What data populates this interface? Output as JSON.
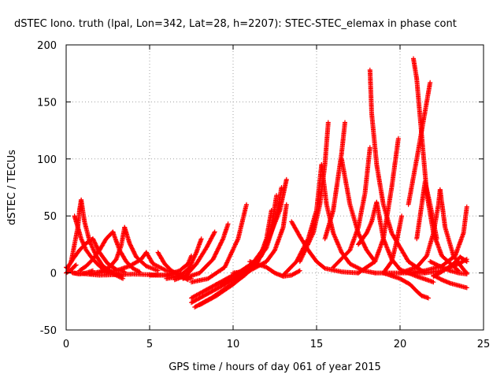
{
  "chart_data": {
    "type": "scatter",
    "title": "dSTEC Iono. truth (lpal, Lon=342, Lat=28, h=2207): STEC-STEC_elemax in phase cont",
    "xlabel": "GPS time / hours of day 061 of year 2015",
    "ylabel": "dSTEC  / TECUs",
    "xlim": [
      0,
      25
    ],
    "ylim": [
      -50,
      200
    ],
    "xticks": [
      0,
      5,
      10,
      15,
      20,
      25
    ],
    "yticks": [
      -50,
      0,
      50,
      100,
      150,
      200
    ],
    "grid": true,
    "marker": "+",
    "color": "#ff0000",
    "series": [
      {
        "x": [
          0.0,
          0.4,
          0.8,
          1.2,
          1.6
        ],
        "y": [
          5,
          0,
          -1,
          0,
          2
        ]
      },
      {
        "x": [
          0.0,
          0.2,
          0.4,
          0.5,
          0.6
        ],
        "y": [
          0,
          2,
          4,
          6,
          7
        ]
      },
      {
        "x": [
          0.5,
          0.7,
          0.9,
          1.2,
          1.6,
          2.0,
          2.4,
          3.0,
          3.4
        ],
        "y": [
          50,
          40,
          30,
          20,
          12,
          6,
          2,
          -2,
          -5
        ]
      },
      {
        "x": [
          0.3,
          0.5,
          0.7,
          0.8,
          0.9
        ],
        "y": [
          10,
          25,
          40,
          55,
          64
        ]
      },
      {
        "x": [
          0.9,
          1.1,
          1.4,
          1.8,
          2.2,
          2.8,
          3.4
        ],
        "y": [
          64,
          45,
          28,
          15,
          6,
          0,
          -3
        ]
      },
      {
        "x": [
          0.1,
          0.4,
          0.8,
          1.2,
          1.6
        ],
        "y": [
          5,
          12,
          20,
          26,
          30
        ]
      },
      {
        "x": [
          1.6,
          2.0,
          2.5,
          3.0,
          3.5
        ],
        "y": [
          30,
          18,
          8,
          3,
          1
        ]
      },
      {
        "x": [
          0.8,
          1.2,
          1.6,
          2.0,
          2.4,
          2.8
        ],
        "y": [
          2,
          6,
          12,
          20,
          30,
          36
        ]
      },
      {
        "x": [
          2.8,
          3.2,
          3.6,
          4.0,
          4.4
        ],
        "y": [
          36,
          20,
          10,
          4,
          1
        ]
      },
      {
        "x": [
          1.4,
          2.0,
          2.6,
          3.0,
          3.3,
          3.5
        ],
        "y": [
          -1,
          1,
          5,
          12,
          24,
          40
        ]
      },
      {
        "x": [
          3.5,
          3.8,
          4.2,
          4.8,
          5.5
        ],
        "y": [
          40,
          26,
          14,
          6,
          2
        ]
      },
      {
        "x": [
          2.0,
          3.0,
          3.8,
          4.5,
          4.8
        ],
        "y": [
          0,
          2,
          6,
          12,
          18
        ]
      },
      {
        "x": [
          4.8,
          5.2,
          6.0,
          7.0
        ],
        "y": [
          18,
          8,
          2,
          -1
        ]
      },
      {
        "x": [
          0.5,
          2.0,
          4.0,
          6.0,
          7.5
        ],
        "y": [
          0,
          -2,
          -1,
          -2,
          -5
        ]
      },
      {
        "x": [
          5.5,
          5.9,
          6.3,
          6.8,
          7.3
        ],
        "y": [
          18,
          8,
          2,
          -2,
          -6
        ]
      },
      {
        "x": [
          5.0,
          6.0,
          6.8,
          7.3,
          7.5
        ],
        "y": [
          -2,
          -2,
          2,
          8,
          15
        ]
      },
      {
        "x": [
          6.0,
          6.8,
          7.4,
          7.8,
          8.1
        ],
        "y": [
          -5,
          -3,
          5,
          18,
          30
        ]
      },
      {
        "x": [
          6.5,
          7.2,
          7.8,
          8.4,
          8.9
        ],
        "y": [
          -6,
          -2,
          8,
          22,
          36
        ]
      },
      {
        "x": [
          7.0,
          8.0,
          8.8,
          9.4,
          9.7
        ],
        "y": [
          -5,
          0,
          12,
          30,
          43
        ]
      },
      {
        "x": [
          7.5,
          8.5,
          9.5,
          10.3,
          10.8
        ],
        "y": [
          -8,
          -5,
          5,
          30,
          60
        ]
      },
      {
        "x": [
          7.5,
          8.5,
          9.5,
          10.5,
          11.5
        ],
        "y": [
          -22,
          -14,
          -6,
          2,
          12
        ]
      },
      {
        "x": [
          7.5,
          8.5,
          9.5,
          10.5,
          11.5,
          12.0,
          12.3
        ],
        "y": [
          -26,
          -18,
          -10,
          -2,
          10,
          30,
          55
        ]
      },
      {
        "x": [
          7.7,
          8.7,
          9.7,
          10.7,
          11.7,
          12.3,
          12.6
        ],
        "y": [
          -30,
          -22,
          -12,
          -2,
          15,
          40,
          68
        ]
      },
      {
        "x": [
          8.0,
          9.0,
          10.0,
          11.0,
          12.0,
          12.6,
          12.9
        ],
        "y": [
          -28,
          -20,
          -10,
          2,
          22,
          50,
          75
        ]
      },
      {
        "x": [
          9.0,
          10.0,
          11.0,
          12.0,
          12.8,
          13.2
        ],
        "y": [
          -10,
          -5,
          5,
          25,
          55,
          82
        ]
      },
      {
        "x": [
          10.0,
          11.0,
          12.0,
          12.5,
          13.0,
          13.2
        ],
        "y": [
          0,
          2,
          10,
          20,
          40,
          60
        ]
      },
      {
        "x": [
          11.0,
          12.0,
          12.5,
          13.0,
          13.5,
          14.0
        ],
        "y": [
          10,
          5,
          0,
          -3,
          -2,
          2
        ]
      },
      {
        "x": [
          13.5,
          14.0,
          14.5,
          15.0,
          15.5,
          16.5,
          17.5
        ],
        "y": [
          45,
          32,
          20,
          10,
          4,
          1,
          0
        ]
      },
      {
        "x": [
          13.0,
          13.8,
          14.5,
          15.0,
          15.3
        ],
        "y": [
          -2,
          10,
          30,
          55,
          95
        ]
      },
      {
        "x": [
          15.3,
          15.6,
          16.0,
          16.5,
          17.0,
          17.8,
          18.5
        ],
        "y": [
          95,
          60,
          35,
          18,
          8,
          2,
          0
        ]
      },
      {
        "x": [
          14.0,
          14.8,
          15.2,
          15.5,
          15.7
        ],
        "y": [
          10,
          35,
          60,
          95,
          132
        ]
      },
      {
        "x": [
          15.5,
          16.0,
          16.2,
          16.5,
          16.7
        ],
        "y": [
          30,
          55,
          75,
          105,
          132
        ]
      },
      {
        "x": [
          16.5,
          17.0,
          17.5,
          18.0,
          18.5
        ],
        "y": [
          100,
          60,
          35,
          20,
          10
        ]
      },
      {
        "x": [
          16.0,
          17.0,
          17.5,
          17.9,
          18.2
        ],
        "y": [
          5,
          20,
          40,
          70,
          110
        ]
      },
      {
        "x": [
          18.2,
          18.3,
          18.6,
          19.0,
          19.5,
          20.5,
          21.5
        ],
        "y": [
          178,
          140,
          95,
          60,
          35,
          10,
          0
        ]
      },
      {
        "x": [
          17.5,
          18.0,
          18.3,
          18.6
        ],
        "y": [
          25,
          35,
          45,
          62
        ]
      },
      {
        "x": [
          18.6,
          19.0,
          19.5,
          20.0,
          21.0,
          22.0
        ],
        "y": [
          62,
          30,
          12,
          3,
          -3,
          -8
        ]
      },
      {
        "x": [
          17.5,
          18.5,
          19.0,
          19.5,
          19.9
        ],
        "y": [
          0,
          10,
          30,
          75,
          118
        ]
      },
      {
        "x": [
          19.0,
          19.5,
          19.8,
          20.1
        ],
        "y": [
          0,
          10,
          28,
          50
        ]
      },
      {
        "x": [
          18.5,
          19.5,
          20.5,
          21.5,
          22.5,
          23.5,
          24.0
        ],
        "y": [
          0,
          0,
          0,
          0,
          2,
          8,
          12
        ]
      },
      {
        "x": [
          20.8,
          21.0,
          21.3,
          21.6,
          22.0,
          22.5,
          23.5
        ],
        "y": [
          188,
          170,
          120,
          70,
          35,
          15,
          2
        ]
      },
      {
        "x": [
          20.5,
          21.0,
          21.3,
          21.6,
          21.8
        ],
        "y": [
          60,
          100,
          125,
          150,
          167
        ]
      },
      {
        "x": [
          21.0,
          21.3,
          21.5,
          21.8,
          22.2
        ],
        "y": [
          30,
          60,
          80,
          60,
          30
        ]
      },
      {
        "x": [
          19.0,
          20.0,
          20.6,
          21.0,
          21.3,
          21.7
        ],
        "y": [
          0,
          -5,
          -10,
          -16,
          -20,
          -22
        ]
      },
      {
        "x": [
          20.0,
          21.0,
          21.6,
          22.0,
          22.3,
          22.4
        ],
        "y": [
          0,
          5,
          15,
          35,
          60,
          73
        ]
      },
      {
        "x": [
          22.4,
          22.7,
          23.2,
          23.8,
          24.0
        ],
        "y": [
          73,
          40,
          15,
          3,
          0
        ]
      },
      {
        "x": [
          20.5,
          21.5,
          22.5,
          23.3,
          23.8,
          24.0
        ],
        "y": [
          0,
          2,
          6,
          15,
          35,
          58
        ]
      },
      {
        "x": [
          22.0,
          22.5,
          23.0,
          23.5,
          24.0
        ],
        "y": [
          -2,
          -6,
          -9,
          -11,
          -13
        ]
      },
      {
        "x": [
          21.8,
          22.5,
          23.0,
          23.5,
          24.0
        ],
        "y": [
          10,
          5,
          2,
          0,
          -1
        ]
      },
      {
        "x": [
          22.0,
          22.6,
          23.2,
          23.6,
          24.0
        ],
        "y": [
          -3,
          2,
          8,
          14,
          10
        ]
      }
    ]
  }
}
